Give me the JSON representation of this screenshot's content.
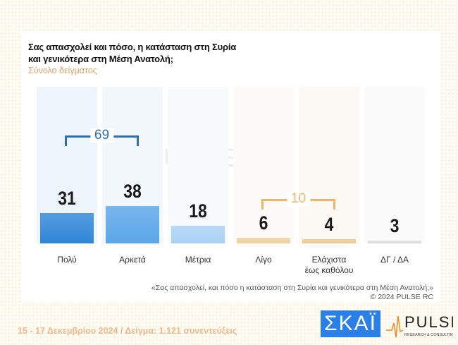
{
  "title_line1": "Σας απασχολεί και πόσο, η κατάσταση στη Συρία",
  "title_line2": "και γενικότερα στη Μέση Ανατολή;",
  "subtitle": "Σύνολο δείγματος",
  "chart_data": {
    "type": "bar",
    "categories": [
      "Πολύ",
      "Αρκετά",
      "Μέτρια",
      "Λίγο",
      "Ελάχιστα έως καθόλου",
      "ΔΓ / ΔΑ"
    ],
    "values": [
      31,
      38,
      18,
      6,
      4,
      3
    ],
    "groups": [
      {
        "label": "69",
        "from": 0,
        "to": 1,
        "color": "#2f6fb0"
      },
      {
        "label": "10",
        "from": 3,
        "to": 4,
        "color": "#f0b46a"
      }
    ],
    "colors": [
      "#2f86d8",
      "#5aa6e8",
      "#a9d1f4",
      "#f0cf9e",
      "#f0c88f",
      "#dcdcdc"
    ],
    "grid": false
  },
  "cat_lines": [
    [
      "Πολύ"
    ],
    [
      "Αρκετά"
    ],
    [
      "Μέτρια"
    ],
    [
      "Λίγο"
    ],
    [
      "Ελάχιστα",
      "έως καθόλου"
    ],
    [
      "ΔΓ / ΔΑ"
    ]
  ],
  "note_line1": "«Σας απασχολεί, και πόσο η κατάσταση στη Συρία και γενικότερα στη Μέση Ανατολή;»",
  "note_line2": "©  2024  PULSE RC",
  "footer": "15 - 17 Δεκεμβρίου 2024  /  Δείγμα:  1.121 συνεντεύξεις",
  "logos": {
    "skai": "ΣΚΑΪ",
    "pulse": "PULSE",
    "pulse_tag": "RESEARCH & CONSULTING",
    "watermark": "PULSE"
  }
}
